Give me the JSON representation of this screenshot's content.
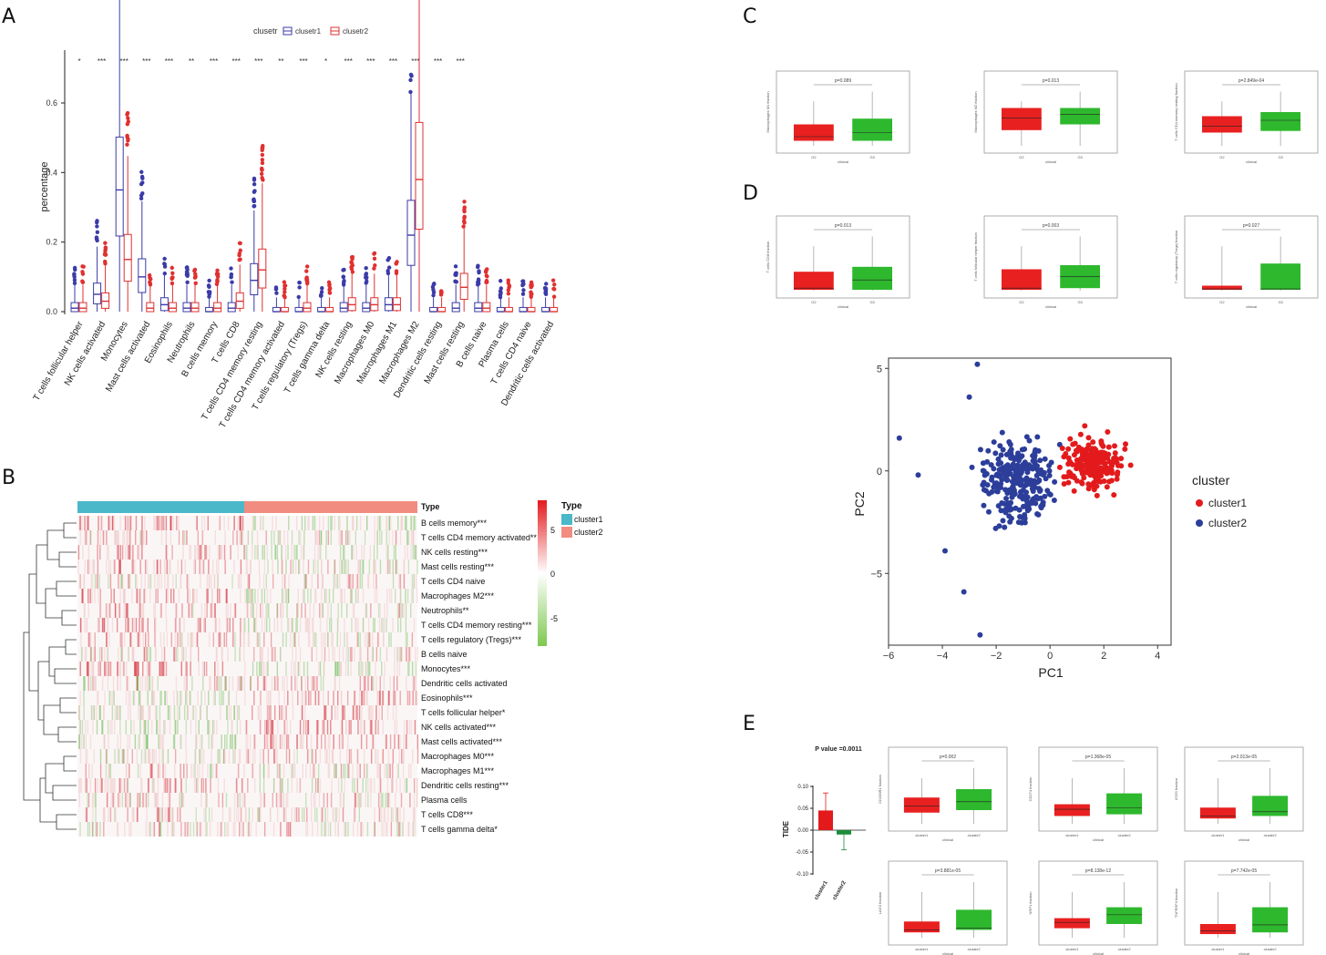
{
  "panels": {
    "a": "A",
    "b": "B",
    "c": "C",
    "d": "D",
    "e": "E"
  },
  "colors": {
    "red": "#e31a1c",
    "blue": "#2c3e9a",
    "green": "#33b033",
    "teal": "#4ab8c9",
    "salmon": "#f08d80",
    "boxblue": "#3b3ba8",
    "boxred": "#e03030"
  },
  "panelA": {
    "legend_title": "clusetr",
    "legend_items": [
      "clusetr1",
      "clusetr2"
    ],
    "ylabel": "percentage",
    "yticks": [
      "0.0",
      "0.2",
      "0.4",
      "0.6"
    ],
    "categories": [
      "T cells follicular helper",
      "NK cells activated",
      "Monocytes",
      "Mast cells activated",
      "Eosinophils",
      "Neutrophils",
      "B cells memory",
      "T cells CD8",
      "T cells CD4 memory resting",
      "T cells CD4 memory activated",
      "T cells regulatory (Tregs)",
      "T cells gamma delta",
      "NK cells resting",
      "Macrophages M0",
      "Macrophages M1",
      "Macrophages M2",
      "Dendritic cells resting",
      "Mast cells resting",
      "B cells naive",
      "Plasma cells",
      "T cells CD4 naive",
      "Dendritic cells activated"
    ],
    "significance": [
      "*",
      "***",
      "***",
      "***",
      "***",
      "**",
      "***",
      "***",
      "***",
      "**",
      "***",
      "*",
      "***",
      "***",
      "***",
      "***",
      "***",
      "***",
      "",
      "",
      "",
      ""
    ]
  },
  "chart_data": [
    {
      "type": "box",
      "title": "",
      "xlabel": "",
      "ylabel": "percentage",
      "ylim": [
        0,
        0.72
      ],
      "categories": [
        "T cells follicular helper",
        "NK cells activated",
        "Monocytes",
        "Mast cells activated",
        "Eosinophils",
        "Neutrophils",
        "B cells memory",
        "T cells CD8",
        "T cells CD4 memory resting",
        "T cells CD4 memory activated",
        "T cells regulatory (Tregs)",
        "T cells gamma delta",
        "NK cells resting",
        "Macrophages M0",
        "Macrophages M1",
        "Macrophages M2",
        "Dendritic cells resting",
        "Mast cells resting",
        "B cells naive",
        "Plasma cells",
        "T cells CD4 naive",
        "Dendritic cells activated"
      ],
      "series": [
        {
          "name": "clusetr1",
          "median": [
            0.01,
            0.05,
            0.35,
            0.1,
            0.02,
            0.01,
            0.0,
            0.01,
            0.09,
            0.0,
            0.0,
            0.0,
            0.01,
            0.01,
            0.02,
            0.22,
            0.0,
            0.01,
            0.01,
            0.0,
            0.0,
            0.0
          ]
        },
        {
          "name": "clusetr2",
          "median": [
            0.01,
            0.03,
            0.15,
            0.01,
            0.01,
            0.01,
            0.01,
            0.03,
            0.12,
            0.0,
            0.01,
            0.0,
            0.02,
            0.02,
            0.02,
            0.38,
            0.0,
            0.07,
            0.01,
            0.0,
            0.0,
            0.0
          ]
        }
      ]
    },
    {
      "type": "scatter",
      "title": "",
      "xlabel": "PC1",
      "ylabel": "PC2",
      "xlim": [
        -6,
        4.5
      ],
      "ylim": [
        -8.5,
        5.5
      ],
      "xticks": [
        "−6",
        "−4",
        "−2",
        "0",
        "2",
        "4"
      ],
      "yticks": [
        "5",
        "0",
        "−5"
      ],
      "legend_title": "cluster",
      "series": [
        {
          "name": "cluster1"
        },
        {
          "name": "cluster2"
        }
      ]
    },
    {
      "type": "bar",
      "title": "P value =0.0011",
      "ylabel": "TIDE",
      "categories": [
        "cluster1",
        "cluster2"
      ],
      "values": [
        0.045,
        -0.01
      ],
      "ylim": [
        -0.1,
        0.1
      ],
      "yticks": [
        "0.10",
        "0.05",
        "0.00",
        "-0.05",
        "-0.10"
      ]
    }
  ],
  "panelB": {
    "legend_title": "Type",
    "legend_items": [
      "cluster1",
      "cluster2"
    ],
    "scale_ticks": [
      "5",
      "0",
      "-5"
    ],
    "header": "Type",
    "rows": [
      "B cells memory***",
      "T cells CD4 memory activated**",
      "NK cells resting***",
      "Mast cells resting***",
      "T cells CD4 naive",
      "Macrophages M2***",
      "Neutrophils**",
      "T cells CD4 memory resting***",
      "T cells regulatory (Tregs)***",
      "B cells naive",
      "Monocytes***",
      "Dendritic cells activated",
      "Eosinophils***",
      "T cells follicular helper*",
      "NK cells activated***",
      "Mast cells activated***",
      "Macrophages M0***",
      "Macrophages M1***",
      "Dendritic cells resting***",
      "Plasma cells",
      "T cells CD8***",
      "T cells gamma delta*"
    ]
  },
  "panelC": {
    "xlabel": "clinical",
    "groups": [
      "G2",
      "G3"
    ],
    "plots": [
      {
        "ylabel": "Macrophages M1 fraction",
        "p": "p=0.089"
      },
      {
        "ylabel": "Macrophages M2 fraction",
        "p": "p=0.013"
      },
      {
        "ylabel": "T cells CD4 memory resting fraction",
        "p": "p=2.849e-04"
      }
    ]
  },
  "panelD": {
    "xlabel": "clinical",
    "groups": [
      "G2",
      "G3"
    ],
    "plots": [
      {
        "ylabel": "T cells CD8 fraction",
        "p": "p=0.013"
      },
      {
        "ylabel": "T cells follicular helper fraction",
        "p": "p=0.003"
      },
      {
        "ylabel": "T cells regulatory (Tregs) fraction",
        "p": "p=0.027"
      }
    ]
  },
  "panelE": {
    "xlabel": "clinical",
    "groups": [
      "cluster1",
      "cluster2"
    ],
    "plots": [
      {
        "ylabel": "CD200R1 fraction",
        "p": "p=0.002"
      },
      {
        "ylabel": "CD274 fraction",
        "p": "p=1.368e-05"
      },
      {
        "ylabel": "ICOS fraction",
        "p": "p=2.013e-05"
      },
      {
        "ylabel": "LAG3 fraction",
        "p": "p=3.881e-05"
      },
      {
        "ylabel": "NRP1 fraction",
        "p": "p=8.138e-12"
      },
      {
        "ylabel": "TNFRSF4 fraction",
        "p": "p=7.742e-05"
      }
    ]
  }
}
